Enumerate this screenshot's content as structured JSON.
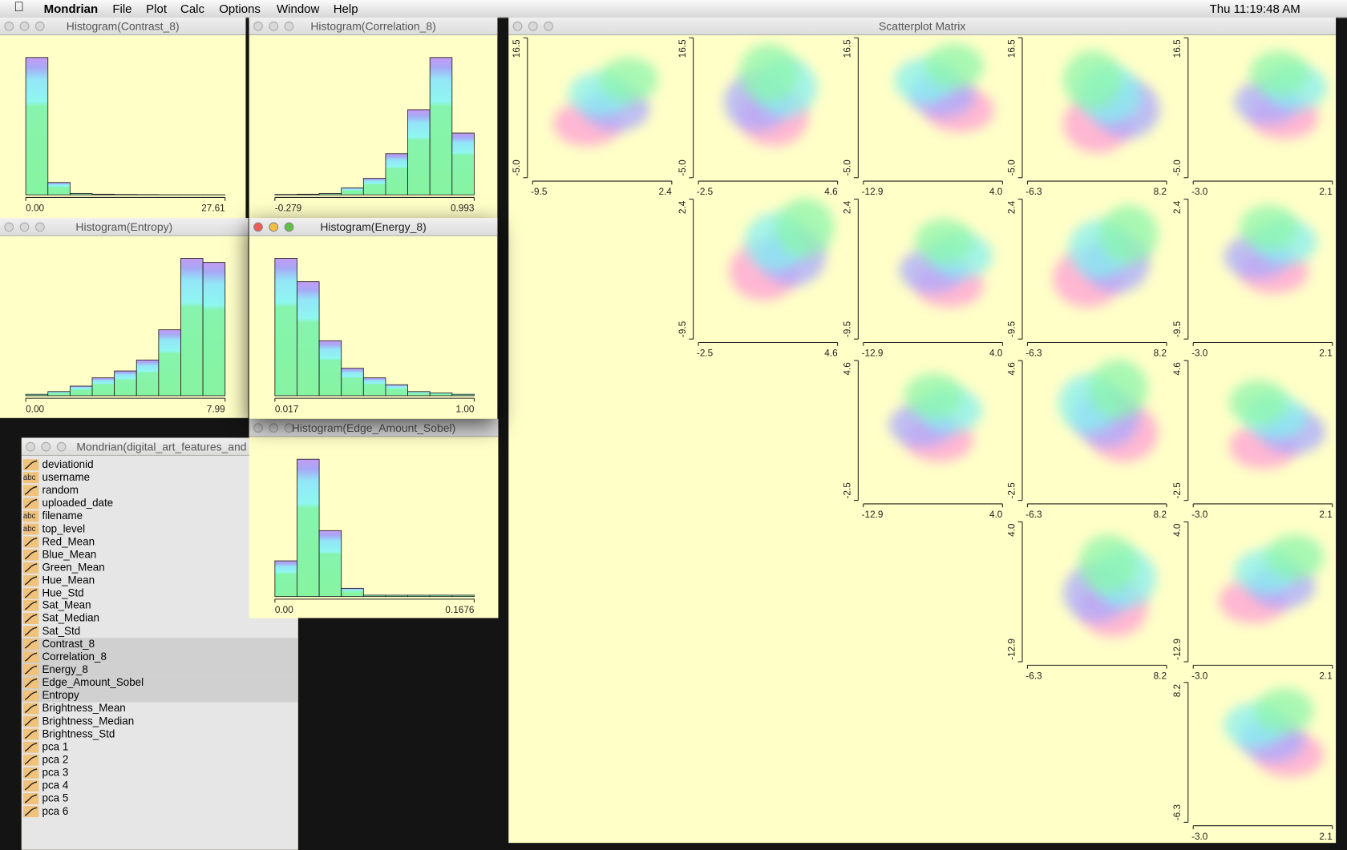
{
  "menu_bar": {
    "app": "Mondrian",
    "items": [
      "File",
      "Plot",
      "Calc",
      "Options",
      "Window",
      "Help"
    ],
    "clock": "Thu 11:19:48 AM"
  },
  "histograms": [
    {
      "title": "Histogram(Contrast_8)",
      "min_label": "0.00",
      "max_label": "27.61",
      "heights": [
        100,
        9,
        1,
        0.5,
        0.3,
        0.2,
        0.1,
        0.1,
        0.1
      ]
    },
    {
      "title": "Histogram(Correlation_8)",
      "min_label": "-0.279",
      "max_label": "0.993",
      "heights": [
        0.3,
        0.5,
        1,
        5,
        12,
        30,
        62,
        100,
        45
      ]
    },
    {
      "title": "Histogram(Entropy)",
      "min_label": "0.00",
      "max_label": "7.99",
      "heights": [
        1,
        3,
        7,
        13,
        18,
        26,
        48,
        100,
        97
      ]
    },
    {
      "title": "Histogram(Energy_8)",
      "min_label": "0.017",
      "max_label": "1.00",
      "heights": [
        100,
        83,
        40,
        20,
        13,
        8,
        3,
        2,
        1
      ]
    },
    {
      "title": "Histogram(Edge_Amount_Sobel)",
      "min_label": "0.00",
      "max_label": "0.1676",
      "heights": [
        26,
        100,
        48,
        6,
        1,
        1,
        1,
        1,
        1
      ]
    }
  ],
  "variable_window": {
    "title": "Mondrian(digital_art_features_and",
    "variables": [
      {
        "name": "deviationid"
      },
      {
        "name": "username",
        "icon": "abc"
      },
      {
        "name": "random"
      },
      {
        "name": "uploaded_date"
      },
      {
        "name": "filename",
        "icon": "abc"
      },
      {
        "name": "top_level",
        "icon": "abc"
      },
      {
        "name": "Red_Mean"
      },
      {
        "name": "Blue_Mean"
      },
      {
        "name": "Green_Mean"
      },
      {
        "name": "Hue_Mean"
      },
      {
        "name": "Hue_Std"
      },
      {
        "name": "Sat_Mean"
      },
      {
        "name": "Sat_Median"
      },
      {
        "name": "Sat_Std"
      },
      {
        "name": "Contrast_8",
        "selected": true
      },
      {
        "name": "Correlation_8",
        "selected": true
      },
      {
        "name": "Energy_8",
        "selected": true
      },
      {
        "name": "Edge_Amount_Sobel",
        "selected": true
      },
      {
        "name": "Entropy",
        "selected": true
      },
      {
        "name": "Brightness_Mean"
      },
      {
        "name": "Brightness_Median"
      },
      {
        "name": "Brightness_Std"
      },
      {
        "name": "pca 1"
      },
      {
        "name": "pca 2"
      },
      {
        "name": "pca 3"
      },
      {
        "name": "pca 4"
      },
      {
        "name": "pca 5"
      },
      {
        "name": "pca 6"
      }
    ]
  },
  "scatterplot_matrix": {
    "title": "Scatterplot Matrix",
    "columns": [
      {
        "min": "-9.5",
        "max": "2.4"
      },
      {
        "min": "-2.5",
        "max": "4.6"
      },
      {
        "min": "-12.9",
        "max": "4.0"
      },
      {
        "min": "-6.3",
        "max": "8.2"
      },
      {
        "min": "-3.0",
        "max": "2.1"
      }
    ],
    "rows": [
      {
        "top": "16.5",
        "bottom": "-5.0"
      },
      {
        "top": "2.4",
        "bottom": "-9.5"
      },
      {
        "top": "4.6",
        "bottom": "-2.5"
      },
      {
        "top": "4.0",
        "bottom": "-12.9"
      },
      {
        "top": "8.2",
        "bottom": "-6.3"
      }
    ]
  }
}
